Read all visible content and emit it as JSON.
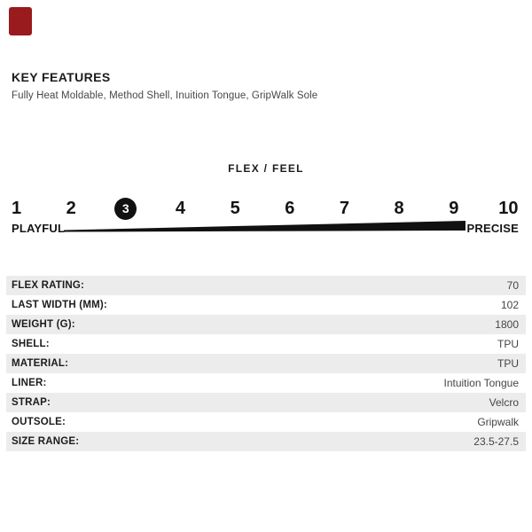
{
  "brand": {
    "logo_mark": "red-square",
    "logo_color": "#991b1e"
  },
  "key_features": {
    "title": "KEY FEATURES",
    "subtitle": "Fully Heat Moldable, Method Shell, Inuition Tongue, GripWalk Sole"
  },
  "flex_scale": {
    "title": "FLEX / FEEL",
    "numbers": [
      "1",
      "2",
      "3",
      "4",
      "5",
      "6",
      "7",
      "8",
      "9",
      "10"
    ],
    "selected": 3,
    "min_label": "PLAYFUL",
    "max_label": "PRECISE"
  },
  "specs": {
    "rows": [
      {
        "label": "FLEX RATING:",
        "value": "70"
      },
      {
        "label": "LAST WIDTH (MM):",
        "value": "102"
      },
      {
        "label": "WEIGHT (G):",
        "value": "1800"
      },
      {
        "label": "SHELL:",
        "value": "TPU"
      },
      {
        "label": "MATERIAL:",
        "value": "TPU"
      },
      {
        "label": "LINER:",
        "value": "Intuition Tongue"
      },
      {
        "label": "STRAP:",
        "value": "Velcro"
      },
      {
        "label": "OUTSOLE:",
        "value": "Gripwalk"
      },
      {
        "label": "SIZE RANGE:",
        "value": "23.5-27.5"
      }
    ]
  },
  "colors": {
    "brand-red": "#991b1e",
    "row-gray": "#ececec",
    "bar-black": "#111111"
  }
}
